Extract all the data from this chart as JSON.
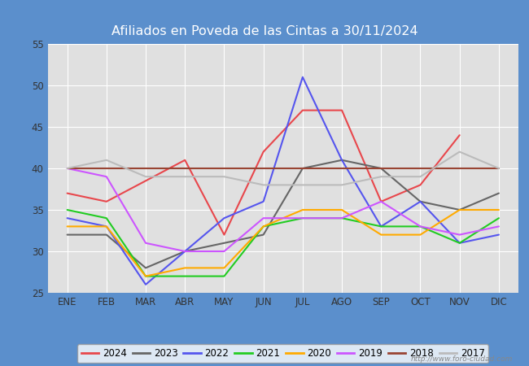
{
  "title": "Afiliados en Poveda de las Cintas a 30/11/2024",
  "ylim": [
    25,
    55
  ],
  "yticks": [
    25,
    30,
    35,
    40,
    45,
    50,
    55
  ],
  "months": [
    "ENE",
    "FEB",
    "MAR",
    "ABR",
    "MAY",
    "JUN",
    "JUL",
    "AGO",
    "SEP",
    "OCT",
    "NOV",
    "DIC"
  ],
  "series": {
    "2024": {
      "color": "#e8474c",
      "data": [
        37,
        36,
        null,
        41,
        32,
        42,
        47,
        47,
        36,
        38,
        44,
        null
      ]
    },
    "2023": {
      "color": "#666666",
      "data": [
        32,
        32,
        28,
        30,
        31,
        32,
        40,
        41,
        40,
        36,
        35,
        37
      ]
    },
    "2022": {
      "color": "#5555ee",
      "data": [
        34,
        33,
        26,
        30,
        34,
        36,
        51,
        41,
        33,
        36,
        31,
        32
      ]
    },
    "2021": {
      "color": "#22cc22",
      "data": [
        35,
        34,
        27,
        27,
        27,
        33,
        34,
        34,
        33,
        33,
        31,
        34
      ]
    },
    "2020": {
      "color": "#ffaa00",
      "data": [
        33,
        33,
        27,
        28,
        28,
        33,
        35,
        35,
        32,
        32,
        35,
        35
      ]
    },
    "2019": {
      "color": "#cc55ff",
      "data": [
        40,
        39,
        31,
        30,
        30,
        34,
        34,
        34,
        36,
        33,
        32,
        33
      ]
    },
    "2018": {
      "color": "#994433",
      "data": [
        40,
        40,
        40,
        40,
        40,
        40,
        40,
        40,
        40,
        40,
        40,
        40
      ]
    },
    "2017": {
      "color": "#bbbbbb",
      "data": [
        40,
        41,
        39,
        39,
        39,
        38,
        38,
        38,
        39,
        39,
        42,
        40
      ]
    }
  },
  "legend_order": [
    "2024",
    "2023",
    "2022",
    "2021",
    "2020",
    "2019",
    "2018",
    "2017"
  ],
  "url_text": "http://www.foro-ciudad.com",
  "title_bg": "#5b8fcc"
}
